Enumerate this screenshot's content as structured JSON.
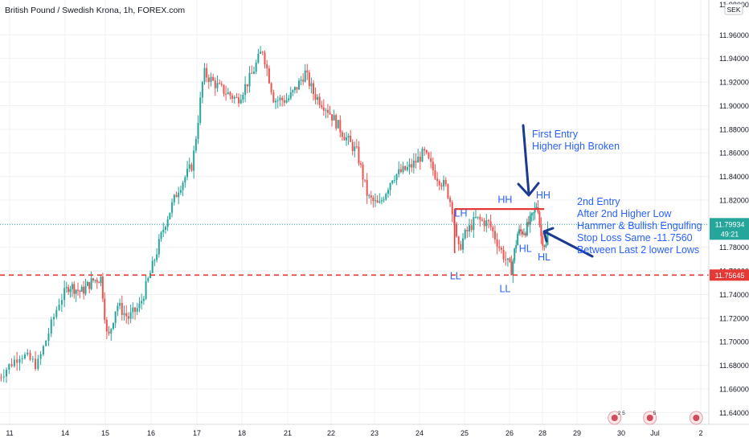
{
  "header": {
    "title": "British Pound / Swedish Krona, 1h, FOREX.com"
  },
  "currency_badge": "SEK",
  "colors": {
    "up": "#26a69a",
    "down": "#ef5350",
    "annotation": "#1a3b8f",
    "annotation_text": "#2962ff",
    "support_line": "#e53935",
    "hh_line": "#e53935",
    "price_tag": "#26a69a",
    "level_tag": "#e53935",
    "axis_text": "#131722",
    "grid": "#eef0f3"
  },
  "chart_data": {
    "type": "candlestick",
    "title": "British Pound / Swedish Krona, 1h, FOREX.com",
    "ylim": [
      11.63,
      11.98
    ],
    "y_ticks": [
      "11.96000",
      "11.94000",
      "11.92000",
      "11.90000",
      "11.88000",
      "11.86000",
      "11.84000",
      "11.82000",
      "11.80000",
      "11.78000",
      "11.76000",
      "11.74000",
      "11.72000",
      "11.70000",
      "11.68000",
      "11.66000",
      "11.64000"
    ],
    "top_partial_tick": "11.98000",
    "x_ticks": [
      {
        "label": "11",
        "x": 0
      },
      {
        "label": "14",
        "x": 1
      },
      {
        "label": "15",
        "x": 2
      },
      {
        "label": "16",
        "x": 3
      },
      {
        "label": "17",
        "x": 4
      },
      {
        "label": "18",
        "x": 5
      },
      {
        "label": "21",
        "x": 6
      },
      {
        "label": "22",
        "x": 7
      },
      {
        "label": "23",
        "x": 8
      },
      {
        "label": "24",
        "x": 9
      },
      {
        "label": "25",
        "x": 10
      },
      {
        "label": "26",
        "x": 11
      },
      {
        "label": "28",
        "x": 12
      },
      {
        "label": "29",
        "x": 13
      },
      {
        "label": "30",
        "x": 14
      },
      {
        "label": "Jul",
        "x": 15
      },
      {
        "label": "2",
        "x": 16
      }
    ],
    "price_path": [
      [
        -0.2,
        11.67
      ],
      [
        0.2,
        11.69
      ],
      [
        0.5,
        11.68
      ],
      [
        0.9,
        11.735
      ],
      [
        1.1,
        11.748
      ],
      [
        1.4,
        11.742
      ],
      [
        1.7,
        11.752
      ],
      [
        1.9,
        11.754
      ],
      [
        2.05,
        11.7
      ],
      [
        2.25,
        11.732
      ],
      [
        2.5,
        11.72
      ],
      [
        2.75,
        11.73
      ],
      [
        3.0,
        11.76
      ],
      [
        3.3,
        11.8
      ],
      [
        3.6,
        11.83
      ],
      [
        3.9,
        11.85
      ],
      [
        4.0,
        11.88
      ],
      [
        4.15,
        11.928
      ],
      [
        4.5,
        11.915
      ],
      [
        4.9,
        11.905
      ],
      [
        5.2,
        11.925
      ],
      [
        5.45,
        11.948
      ],
      [
        5.7,
        11.905
      ],
      [
        6.0,
        11.905
      ],
      [
        6.2,
        11.915
      ],
      [
        6.4,
        11.928
      ],
      [
        6.6,
        11.91
      ],
      [
        6.9,
        11.898
      ],
      [
        7.3,
        11.875
      ],
      [
        7.6,
        11.86
      ],
      [
        7.85,
        11.822
      ],
      [
        8.1,
        11.815
      ],
      [
        8.4,
        11.84
      ],
      [
        8.8,
        11.848
      ],
      [
        9.1,
        11.86
      ],
      [
        9.35,
        11.842
      ],
      [
        9.6,
        11.83
      ],
      [
        9.75,
        11.81
      ],
      [
        9.85,
        11.776
      ],
      [
        10.0,
        11.79
      ],
      [
        10.25,
        11.804
      ],
      [
        10.55,
        11.8
      ],
      [
        10.8,
        11.778
      ],
      [
        11.05,
        11.76
      ],
      [
        11.25,
        11.792
      ],
      [
        11.5,
        11.795
      ],
      [
        11.7,
        11.806
      ],
      [
        11.85,
        11.818
      ],
      [
        11.95,
        11.79
      ],
      [
        12.1,
        11.78
      ],
      [
        12.15,
        11.794
      ]
    ],
    "hh_level": 11.8124,
    "support_level": 11.75645,
    "current_price": "11.79934",
    "countdown": "49:21",
    "support_label": "11.75645",
    "swing_labels": [
      {
        "text": "LL",
        "x": 9.8,
        "y": 11.753
      },
      {
        "text": "LH",
        "x": 9.92,
        "y": 11.806
      },
      {
        "text": "HH",
        "x": 10.9,
        "y": 11.8175
      },
      {
        "text": "LL",
        "x": 10.9,
        "y": 11.742
      },
      {
        "text": "HL",
        "x": 11.48,
        "y": 11.776
      },
      {
        "text": "HH",
        "x": 12.02,
        "y": 11.8215
      },
      {
        "text": "HL",
        "x": 12.05,
        "y": 11.769
      }
    ],
    "annotation_first": [
      "First Entry",
      "Higher High Broken"
    ],
    "annotation_second": [
      "2nd Entry",
      "After 2nd Higher Low",
      "Hammer & Bullish Engulfing",
      "Stop Loss Same -11.7560",
      "Between Last 2 lower Lows"
    ],
    "event_badges": [
      {
        "x": 13.85,
        "count": "2 5"
      },
      {
        "x": 14.85,
        "count": "5"
      },
      {
        "x": 15.9,
        "count": ""
      }
    ]
  }
}
